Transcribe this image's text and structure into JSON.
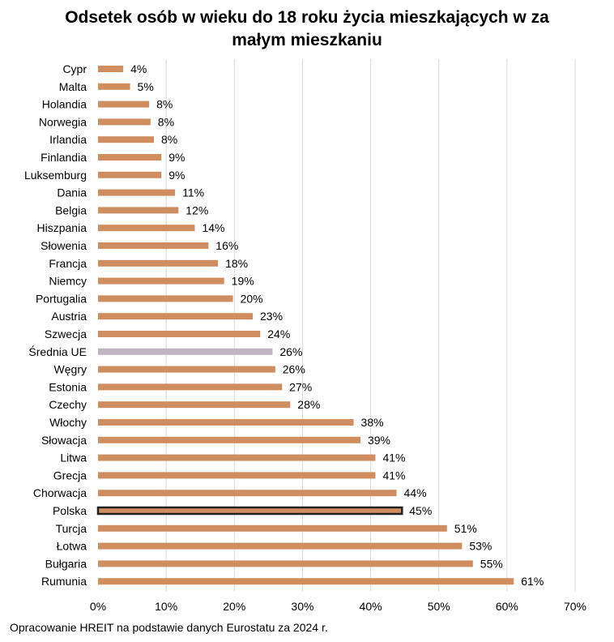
{
  "title_lines": [
    "Odsetek osób w wieku do 18 roku życia mieszkających w za",
    "małym mieszkaniu"
  ],
  "footer": "Opracowanie HREIT na podstawie danych Eurostatu za 2024 r.",
  "colors": {
    "bar": "#d08d5f",
    "eu_average": "#bfb4bf",
    "highlight_border": "#222222",
    "grid": "#d9d9d9"
  },
  "chart_data": {
    "type": "bar",
    "orientation": "horizontal",
    "title": "Odsetek osób w wieku do 18 roku życia mieszkających w za małym mieszkaniu",
    "categories": [
      "Cypr",
      "Malta",
      "Holandia",
      "Norwegia",
      "Irlandia",
      "Finlandia",
      "Luksemburg",
      "Dania",
      "Belgia",
      "Hiszpania",
      "Słowenia",
      "Francja",
      "Niemcy",
      "Portugalia",
      "Austria",
      "Szwecja",
      "Średnia UE",
      "Węgry",
      "Estonia",
      "Czechy",
      "Włochy",
      "Słowacja",
      "Litwa",
      "Grecja",
      "Chorwacja",
      "Polska",
      "Turcja",
      "Łotwa",
      "Bułgaria",
      "Rumunia"
    ],
    "values": [
      3.7,
      4.7,
      7.5,
      7.7,
      8.2,
      9.3,
      9.3,
      11.3,
      11.8,
      14.2,
      16.2,
      17.6,
      18.5,
      19.8,
      22.7,
      23.8,
      25.6,
      26.0,
      27.0,
      28.2,
      37.5,
      38.5,
      40.7,
      40.7,
      43.8,
      44.6,
      51.2,
      53.4,
      55.0,
      61.0
    ],
    "labels": [
      "4%",
      "5%",
      "8%",
      "8%",
      "8%",
      "9%",
      "9%",
      "11%",
      "12%",
      "14%",
      "16%",
      "18%",
      "19%",
      "20%",
      "23%",
      "24%",
      "26%",
      "26%",
      "27%",
      "28%",
      "38%",
      "39%",
      "41%",
      "41%",
      "44%",
      "45%",
      "51%",
      "53%",
      "55%",
      "61%"
    ],
    "xlim": [
      0,
      70
    ],
    "xticks": [
      "0%",
      "10%",
      "20%",
      "30%",
      "40%",
      "50%",
      "60%",
      "70%"
    ],
    "grid": true,
    "legend": "none",
    "eu_average_category": "Średnia UE",
    "highlighted_category": "Polska"
  }
}
